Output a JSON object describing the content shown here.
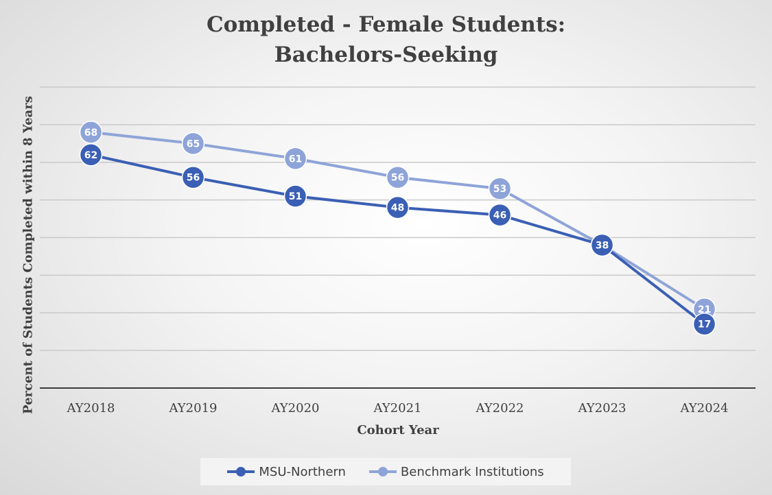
{
  "chart_data": {
    "type": "line",
    "title": [
      "Completed - Female Students:",
      "Bachelors-Seeking"
    ],
    "xlabel": "Cohort Year",
    "ylabel": "Percent of Students Completed within 8 Years",
    "categories": [
      "AY2018",
      "AY2019",
      "AY2020",
      "AY2021",
      "AY2022",
      "AY2023",
      "AY2024"
    ],
    "ylim": [
      0,
      80
    ],
    "y_tick_step": 10,
    "grid": true,
    "legend_position": "bottom",
    "series": [
      {
        "name": "MSU-Northern",
        "color": "#3a5fb4",
        "values": [
          62,
          56,
          51,
          48,
          46,
          38,
          17
        ]
      },
      {
        "name": "Benchmark Institutions",
        "color": "#8ea4d8",
        "values": [
          68,
          65,
          61,
          56,
          53,
          38,
          21
        ]
      }
    ]
  }
}
